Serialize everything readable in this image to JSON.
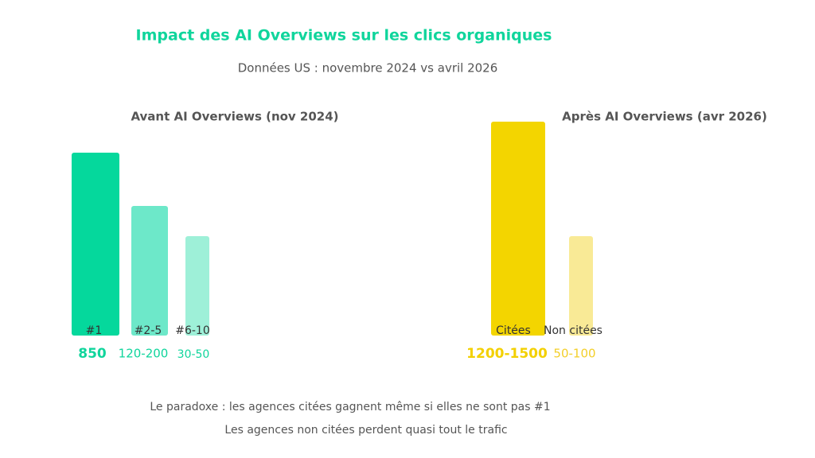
{
  "title": "Impact des AI Overviews sur les clics organiques",
  "subtitle": "Données US : novembre 2024 vs avril 2026",
  "panels": [
    {
      "title": "Avant AI Overviews (nov 2024)",
      "items": [
        {
          "label": "#1",
          "value": "850"
        },
        {
          "label": "#2-5",
          "value": "120-200"
        },
        {
          "label": "#6-10",
          "value": "30-50"
        }
      ]
    },
    {
      "title": "Après AI Overviews (avr 2026)",
      "items": [
        {
          "label": "Citées",
          "value": "1200-1500"
        },
        {
          "label": "Non citées",
          "value": "50-100"
        }
      ]
    }
  ],
  "footer": [
    "Le paradoxe : les agences citées gagnent même si elles ne sont pas #1",
    "Les agences non citées perdent quasi tout le trafic"
  ]
}
